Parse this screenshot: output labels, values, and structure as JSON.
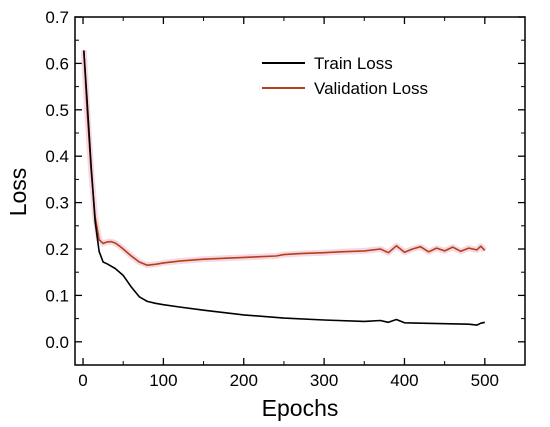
{
  "chart_data": {
    "type": "line",
    "title": "",
    "xlabel": "Epochs",
    "ylabel": "Loss",
    "xlim": [
      -10,
      550
    ],
    "ylim": [
      -0.05,
      0.7
    ],
    "x_ticks": [
      0,
      100,
      200,
      300,
      400,
      500
    ],
    "y_ticks": [
      0.0,
      0.1,
      0.2,
      0.3,
      0.4,
      0.5,
      0.6,
      0.7
    ],
    "y_tick_labels": [
      "0.0",
      "0.1",
      "0.2",
      "0.3",
      "0.4",
      "0.5",
      "0.6",
      "0.7"
    ],
    "x_tick_labels": [
      "0",
      "100",
      "200",
      "300",
      "400",
      "500"
    ],
    "grid": false,
    "legend_position": "top-right",
    "series": [
      {
        "name": "Train Loss",
        "color": "#000000",
        "x": [
          1,
          5,
          10,
          15,
          20,
          25,
          30,
          35,
          40,
          50,
          60,
          70,
          80,
          90,
          100,
          120,
          150,
          200,
          250,
          300,
          350,
          370,
          380,
          390,
          400,
          450,
          480,
          490,
          495,
          500
        ],
        "y": [
          0.628,
          0.52,
          0.38,
          0.26,
          0.195,
          0.172,
          0.168,
          0.163,
          0.158,
          0.143,
          0.118,
          0.097,
          0.087,
          0.083,
          0.08,
          0.075,
          0.068,
          0.058,
          0.051,
          0.047,
          0.044,
          0.046,
          0.042,
          0.048,
          0.041,
          0.039,
          0.038,
          0.036,
          0.04,
          0.042
        ]
      },
      {
        "name": "Validation Loss",
        "color": "#b3401a",
        "x": [
          1,
          5,
          10,
          15,
          20,
          25,
          30,
          35,
          40,
          45,
          50,
          60,
          70,
          80,
          90,
          100,
          120,
          150,
          200,
          240,
          250,
          270,
          300,
          320,
          350,
          370,
          380,
          390,
          400,
          410,
          420,
          430,
          440,
          450,
          460,
          470,
          480,
          490,
          495,
          500
        ],
        "y": [
          0.628,
          0.5,
          0.37,
          0.27,
          0.22,
          0.212,
          0.215,
          0.216,
          0.213,
          0.207,
          0.2,
          0.185,
          0.172,
          0.165,
          0.167,
          0.17,
          0.174,
          0.178,
          0.182,
          0.185,
          0.188,
          0.19,
          0.192,
          0.194,
          0.196,
          0.2,
          0.192,
          0.207,
          0.193,
          0.2,
          0.205,
          0.194,
          0.202,
          0.196,
          0.204,
          0.195,
          0.202,
          0.198,
          0.206,
          0.197
        ]
      }
    ]
  }
}
